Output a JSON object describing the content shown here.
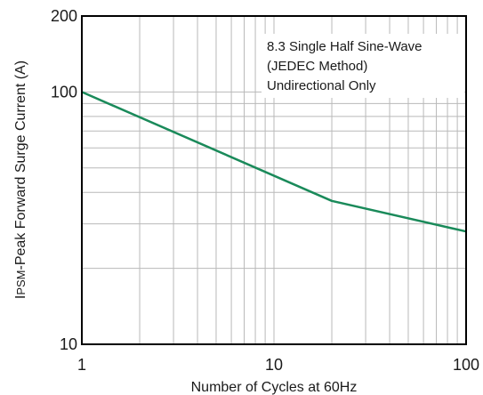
{
  "chart_data": {
    "type": "line",
    "title": "",
    "xlabel": "Number of Cycles at 60Hz",
    "ylabel": {
      "prefix": "I",
      "subscript": "PSM",
      "text": "-Peak Forward Surge Current (A)"
    },
    "xscale": "log",
    "yscale": "log",
    "xlim": [
      1,
      100
    ],
    "ylim": [
      10,
      200
    ],
    "x_tick_labels": [
      "1",
      "10",
      "100"
    ],
    "y_tick_labels": [
      "10",
      "100",
      "200"
    ],
    "grid": true,
    "annotation": [
      "8.3 Single Half Sine-Wave",
      "(JEDEC Method)",
      "Undirectional Only"
    ],
    "series": [
      {
        "color": "#1a8a5a",
        "x": [
          1,
          20,
          100
        ],
        "y": [
          100,
          37,
          28
        ]
      }
    ]
  }
}
